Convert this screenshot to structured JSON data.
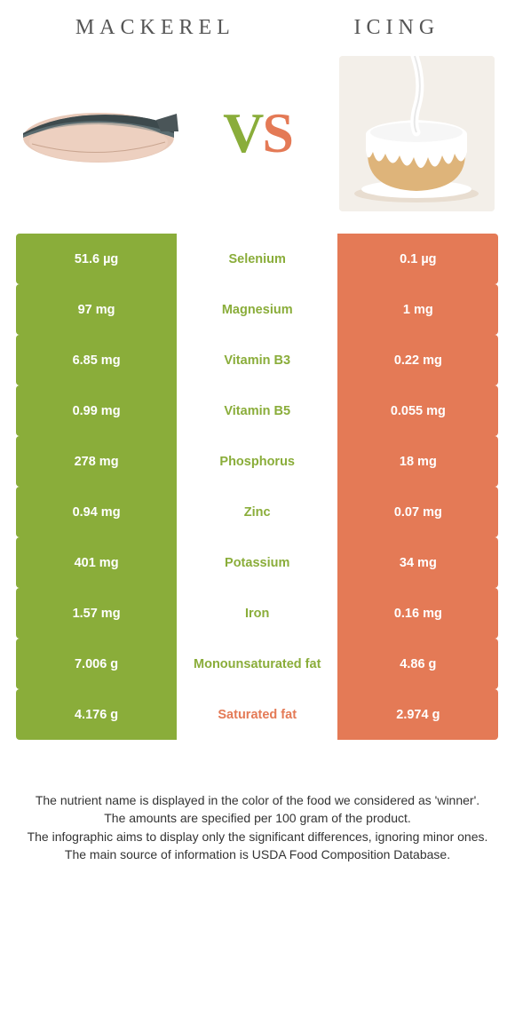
{
  "colors": {
    "left_bg": "#8aad3a",
    "right_bg": "#e47a56",
    "left_text": "#8aad3a",
    "right_text": "#e47a56",
    "mid_bg": "#ffffff"
  },
  "header": {
    "left_title": "MACKEREL",
    "right_title": "ICING",
    "vs_v": "V",
    "vs_s": "S"
  },
  "rows": [
    {
      "left": "51.6 µg",
      "label": "Selenium",
      "right": "0.1 µg",
      "winner": "left"
    },
    {
      "left": "97 mg",
      "label": "Magnesium",
      "right": "1 mg",
      "winner": "left"
    },
    {
      "left": "6.85 mg",
      "label": "Vitamin B3",
      "right": "0.22 mg",
      "winner": "left"
    },
    {
      "left": "0.99 mg",
      "label": "Vitamin B5",
      "right": "0.055 mg",
      "winner": "left"
    },
    {
      "left": "278 mg",
      "label": "Phosphorus",
      "right": "18 mg",
      "winner": "left"
    },
    {
      "left": "0.94 mg",
      "label": "Zinc",
      "right": "0.07 mg",
      "winner": "left"
    },
    {
      "left": "401 mg",
      "label": "Potassium",
      "right": "34 mg",
      "winner": "left"
    },
    {
      "left": "1.57 mg",
      "label": "Iron",
      "right": "0.16 mg",
      "winner": "left"
    },
    {
      "left": "7.006 g",
      "label": "Monounsaturated fat",
      "right": "4.86 g",
      "winner": "left"
    },
    {
      "left": "4.176 g",
      "label": "Saturated fat",
      "right": "2.974 g",
      "winner": "right"
    }
  ],
  "footer": {
    "line1": "The nutrient name is displayed in the color of the food we considered as 'winner'.",
    "line2": "The amounts are specified per 100 gram of the product.",
    "line3": "The infographic aims to display only the significant differences, ignoring minor ones.",
    "line4": "The main source of information is USDA Food Composition Database."
  }
}
